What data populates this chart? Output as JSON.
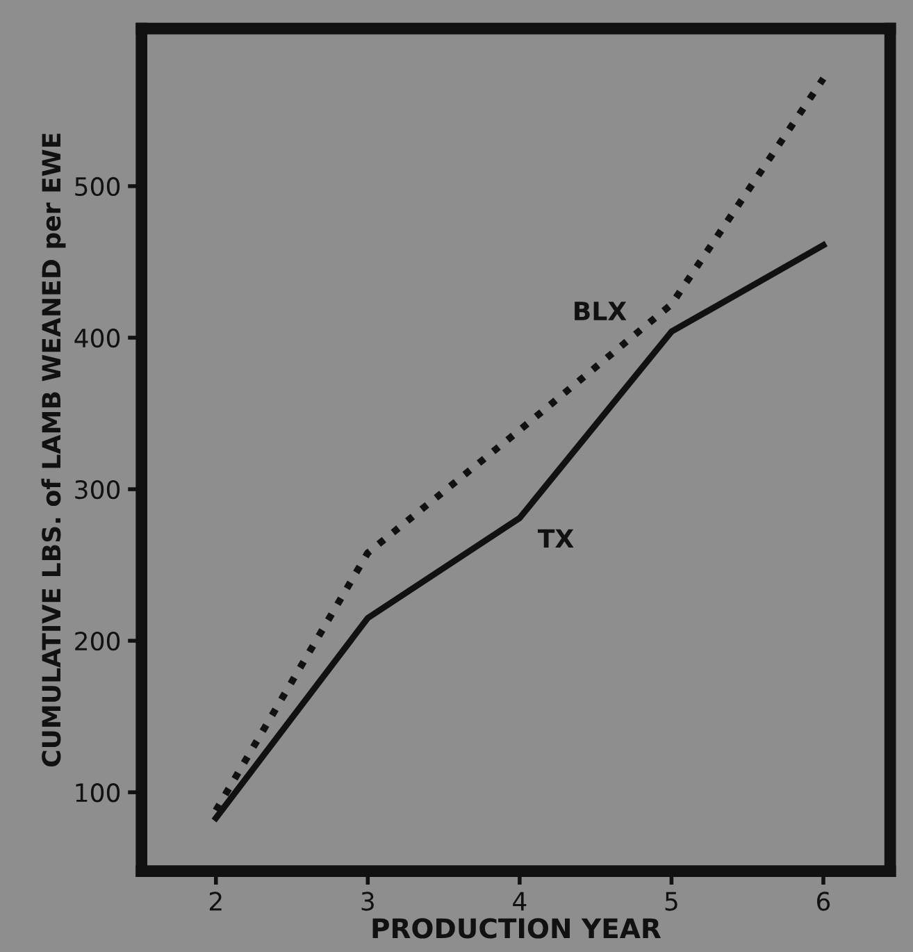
{
  "chart_data": {
    "type": "line",
    "xlabel": "PRODUCTION YEAR",
    "ylabel": "CUMULATIVE LBS. of LAMB WEANED per EWE",
    "x": [
      2,
      3,
      4,
      5,
      6
    ],
    "series": [
      {
        "name": "TX",
        "color": "#111111",
        "values": [
          83,
          215,
          281,
          404,
          461
        ],
        "line_style": "solid"
      },
      {
        "name": "BLX",
        "color": "#111111",
        "values": [
          88,
          258,
          339,
          422,
          571
        ],
        "line_style": "dotted"
      }
    ],
    "xlim": [
      1.51,
      6.44
    ],
    "ylim": [
      48,
      604
    ],
    "xticks": [
      2,
      3,
      4,
      5,
      6
    ],
    "yticks": [
      100,
      200,
      300,
      400,
      500
    ],
    "grid": false,
    "legend": false,
    "marker": "none"
  }
}
